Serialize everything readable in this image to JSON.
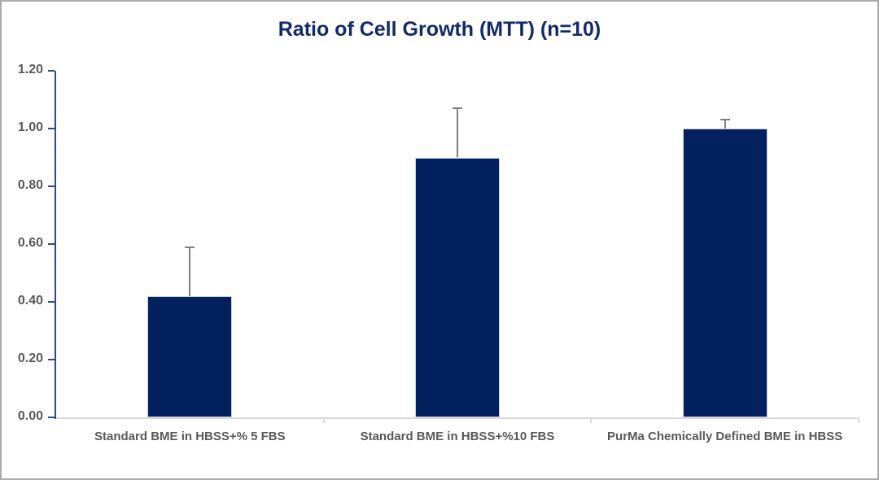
{
  "chart_data": {
    "type": "bar",
    "title": "Ratio of Cell Growth (MTT) (n=10)",
    "categories": [
      "Standard  BME in HBSS+% 5 FBS",
      "Standard  BME in HBSS+%10 FBS",
      "PurMa Chemically Defined BME in HBSS"
    ],
    "values": [
      0.42,
      0.9,
      1.0
    ],
    "error_bars_plus": [
      0.17,
      0.17,
      0.03
    ],
    "xlabel": "",
    "ylabel": "",
    "ylim": [
      0,
      1.2
    ],
    "y_ticks": [
      0.0,
      0.2,
      0.4,
      0.6,
      0.8,
      1.0,
      1.2
    ],
    "y_tick_decimals": 2,
    "grid": false,
    "legend": false,
    "colors": {
      "bar_fill": "#03215f",
      "bar_border": "#c9d3e6",
      "error_bar": "#7f7f7f",
      "title": "#122a67",
      "y_axis_line": "#2a4a8c",
      "x_axis_line": "#d9d9d9",
      "tick_label": "#595959"
    }
  }
}
